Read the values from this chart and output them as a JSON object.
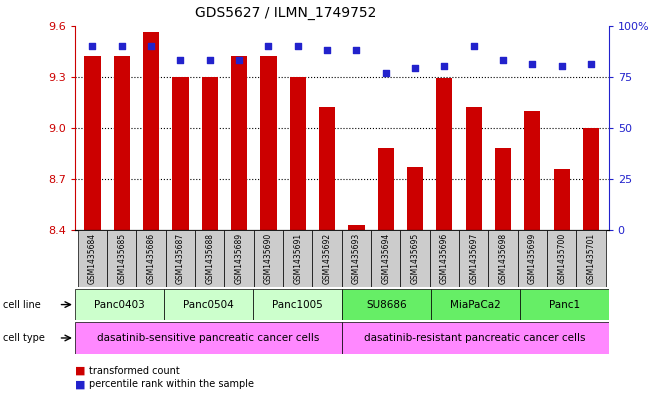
{
  "title": "GDS5627 / ILMN_1749752",
  "samples": [
    "GSM1435684",
    "GSM1435685",
    "GSM1435686",
    "GSM1435687",
    "GSM1435688",
    "GSM1435689",
    "GSM1435690",
    "GSM1435691",
    "GSM1435692",
    "GSM1435693",
    "GSM1435694",
    "GSM1435695",
    "GSM1435696",
    "GSM1435697",
    "GSM1435698",
    "GSM1435699",
    "GSM1435700",
    "GSM1435701"
  ],
  "transformed_counts": [
    9.42,
    9.42,
    9.56,
    9.3,
    9.3,
    9.42,
    9.42,
    9.3,
    9.12,
    8.43,
    8.88,
    8.77,
    9.29,
    9.12,
    8.88,
    9.1,
    8.76,
    9.0
  ],
  "percentile_ranks": [
    90,
    90,
    90,
    83,
    83,
    83,
    90,
    90,
    88,
    88,
    77,
    79,
    80,
    90,
    83,
    81,
    80,
    81
  ],
  "ymin": 8.4,
  "ymax": 9.6,
  "yticks": [
    8.4,
    8.7,
    9.0,
    9.3,
    9.6
  ],
  "percentile_yticks": [
    0,
    25,
    50,
    75,
    100
  ],
  "cell_lines": [
    {
      "label": "Panc0403",
      "start": 0,
      "end": 3
    },
    {
      "label": "Panc0504",
      "start": 3,
      "end": 6
    },
    {
      "label": "Panc1005",
      "start": 6,
      "end": 9
    },
    {
      "label": "SU8686",
      "start": 9,
      "end": 12
    },
    {
      "label": "MiaPaCa2",
      "start": 12,
      "end": 15
    },
    {
      "label": "Panc1",
      "start": 15,
      "end": 18
    }
  ],
  "cell_types": [
    {
      "label": "dasatinib-sensitive pancreatic cancer cells",
      "start": 0,
      "end": 9
    },
    {
      "label": "dasatinib-resistant pancreatic cancer cells",
      "start": 9,
      "end": 18
    }
  ],
  "cell_line_color_sensitive": "#ccffcc",
  "cell_line_color_resistant": "#66ee66",
  "cell_type_color": "#ff88ff",
  "sample_label_bg": "#cccccc",
  "bar_color": "#cc0000",
  "dot_color": "#2222cc",
  "left_axis_color": "#cc0000",
  "right_axis_color": "#2222cc",
  "legend_bar_label": "transformed count",
  "legend_dot_label": "percentile rank within the sample"
}
